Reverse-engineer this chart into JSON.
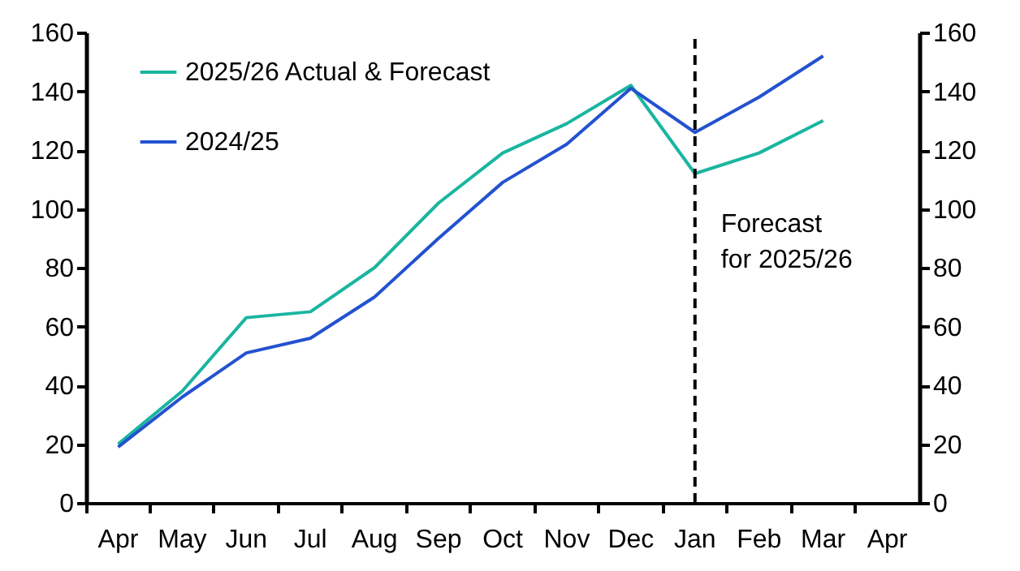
{
  "chart_data": {
    "type": "line",
    "categories": [
      "Apr",
      "May",
      "Jun",
      "Jul",
      "Aug",
      "Sep",
      "Oct",
      "Nov",
      "Dec",
      "Jan",
      "Feb",
      "Mar",
      "Apr"
    ],
    "series": [
      {
        "name": "2025/26 Actual & Forecast",
        "color": "#1ab5a0",
        "values": [
          20,
          38,
          63,
          65,
          80,
          102,
          119,
          129,
          142,
          112,
          119,
          130,
          null
        ]
      },
      {
        "name": "2024/25",
        "color": "#2352d0",
        "values": [
          19,
          36,
          51,
          56,
          70,
          90,
          109,
          122,
          141,
          126,
          138,
          152,
          null
        ]
      }
    ],
    "ylim": [
      0,
      160
    ],
    "yticks": [
      0,
      20,
      40,
      60,
      80,
      100,
      120,
      140,
      160
    ],
    "y2lim": [
      0,
      160
    ],
    "y2ticks": [
      0,
      20,
      40,
      60,
      80,
      100,
      120,
      140,
      160
    ],
    "ref_lines": [
      {
        "axis": "x",
        "value": "Jan",
        "line_style": "dashed",
        "color": "#000000"
      }
    ],
    "annotations": [
      "Forecast for 2025/26"
    ],
    "grid": false,
    "legend": "top left",
    "line_style": "solid",
    "marker": "none"
  }
}
